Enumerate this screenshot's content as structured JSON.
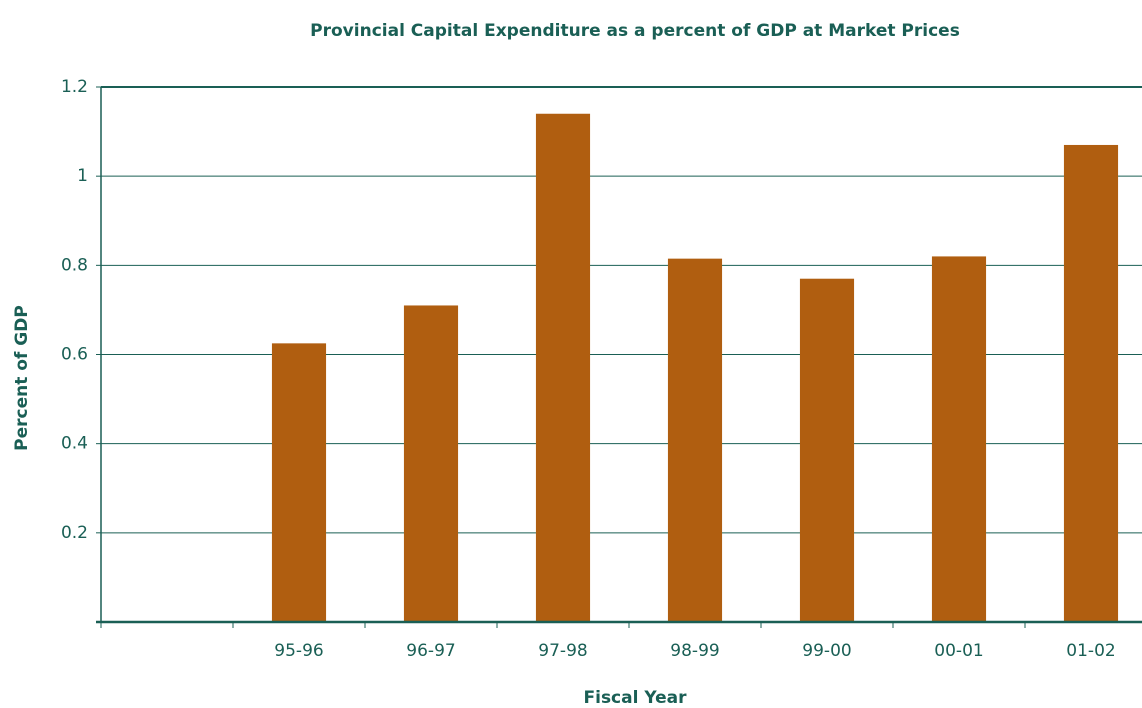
{
  "chart_data": {
    "type": "bar",
    "title": "Provincial Capital Expenditure as a percent of GDP at Market Prices",
    "xlabel": "Fiscal Year",
    "ylabel": "Percent of GDP",
    "categories": [
      null,
      "95-96",
      "96-97",
      "97-98",
      "98-99",
      "99-00",
      "00-01",
      "01-02"
    ],
    "values": [
      null,
      0.625,
      0.71,
      1.14,
      0.815,
      0.77,
      0.82,
      1.07
    ],
    "color": "#b05e10",
    "ylim": [
      0,
      1.2
    ],
    "yticks": [
      0.2,
      0.4,
      0.6,
      0.8,
      1,
      1.2
    ],
    "grid": true
  }
}
